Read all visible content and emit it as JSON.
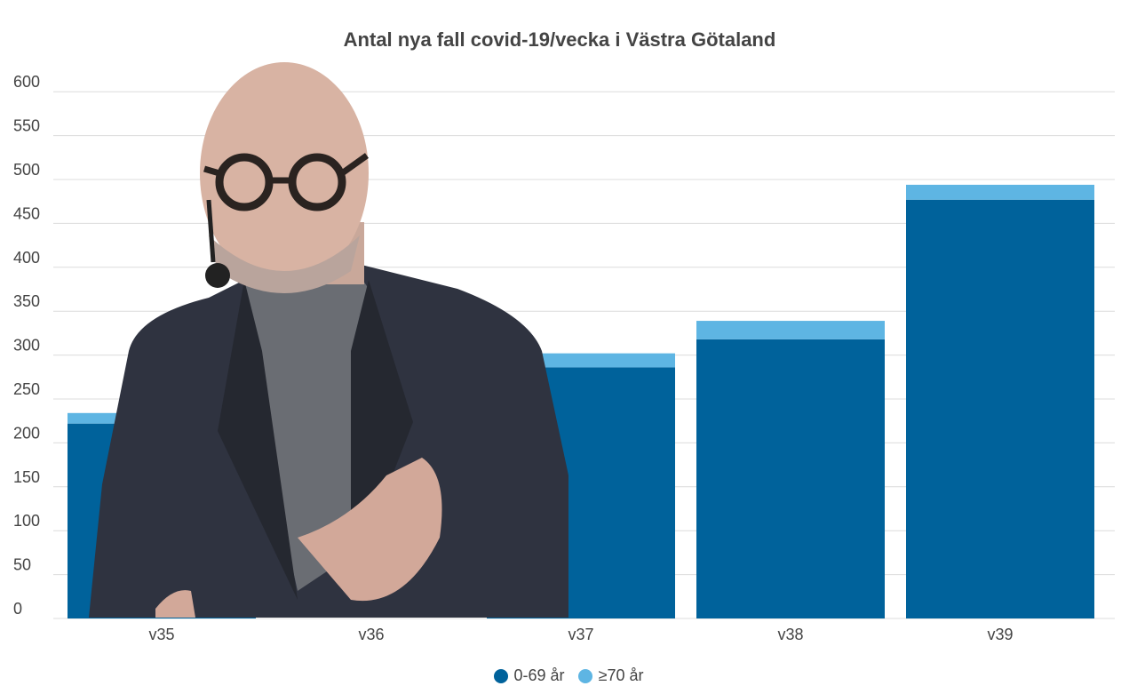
{
  "chart_data": {
    "type": "bar",
    "stacked": true,
    "title": "Antal nya fall covid-19/vecka i Västra Götaland",
    "xlabel": "",
    "ylabel": "",
    "categories": [
      "v35",
      "v36",
      "v37",
      "v38",
      "v39"
    ],
    "series": [
      {
        "name": "0-69 år",
        "color": "#00629b",
        "values": [
          222,
          null,
          286,
          318,
          477
        ]
      },
      {
        "name": "≥70 år",
        "color": "#5eb5e3",
        "values": [
          12,
          null,
          16,
          21,
          17
        ]
      }
    ],
    "ylim": [
      0,
      600
    ],
    "yticks": [
      0,
      50,
      100,
      150,
      200,
      250,
      300,
      350,
      400,
      450,
      500,
      550,
      600
    ],
    "grid": true,
    "legend_position": "bottom",
    "overlay": "presenter-photo covering v36"
  }
}
